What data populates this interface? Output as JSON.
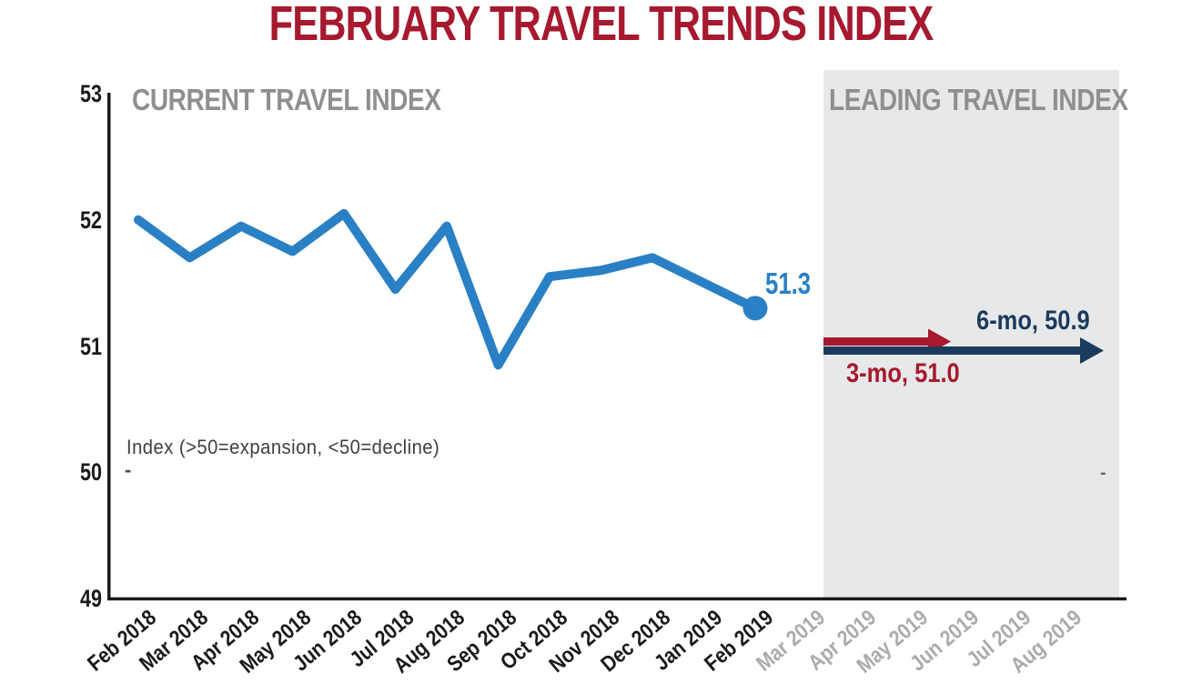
{
  "colors": {
    "title_red": "#A6192E",
    "heading_gray": "#8D8F90",
    "shade": "#E7E8E9",
    "axis": "#1A1A1A",
    "forecast_tick_gray": "#ABABAB",
    "note_gray": "#3F4041",
    "dash_dark": "#4B4B4D",
    "dash_light": "#6A6C6E"
  },
  "chart_data": {
    "type": "line",
    "title": "FEBRUARY TRAVEL TRENDS INDEX",
    "sections": {
      "current": "CURRENT TRAVEL INDEX",
      "leading": "LEADING TRAVEL INDEX"
    },
    "note": "Index (>50=expansion, <50=decline)",
    "categories": [
      "Feb 2018",
      "Mar 2018",
      "Apr 2018",
      "May 2018",
      "Jun 2018",
      "Jul 2018",
      "Aug 2018",
      "Sep 2018",
      "Oct 2018",
      "Nov 2018",
      "Dec 2018",
      "Jan 2019",
      "Feb 2019",
      "Mar 2019",
      "Apr 2019",
      "May 2019",
      "Jun 2019",
      "Jul 2019",
      "Aug 2019"
    ],
    "forecast_start_index": 13,
    "series": [
      {
        "name": "Current Travel Index",
        "color": "#2A80C4",
        "values": [
          52.0,
          51.7,
          51.95,
          51.75,
          52.05,
          51.45,
          51.95,
          50.85,
          51.55,
          51.6,
          51.7,
          51.5,
          51.3
        ]
      }
    ],
    "end_point": {
      "label": "51.3",
      "value": 51.3,
      "month": "Feb 2019"
    },
    "leading_index": {
      "three_month": {
        "label": "3-mo, 51.0",
        "value": 51.0,
        "color": "#A6192E"
      },
      "six_month": {
        "label": "6-mo, 50.9",
        "value": 50.9,
        "color": "#1B3A5E"
      }
    },
    "ylim": [
      49,
      53
    ],
    "yticks": [
      53,
      52,
      51,
      50,
      49
    ],
    "grid": false,
    "x_tick_rotation": -40,
    "legend": "none",
    "placeholder_dashes": {
      "left": "-",
      "right": "-"
    }
  }
}
